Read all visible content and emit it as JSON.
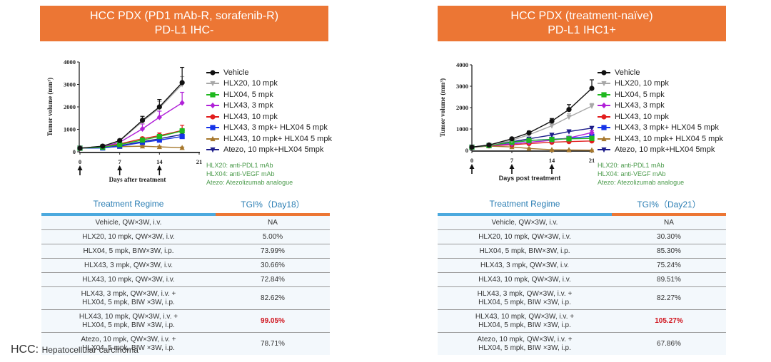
{
  "footer": {
    "abbr": "HCC:",
    "definition": "Hepatocellular carcinoma"
  },
  "panels": [
    {
      "banner_line1": "HCC PDX (PD1 mAb-R, sorafenib-R)",
      "banner_line2": "PD-L1 IHC-",
      "notes": [
        "HLX20: anti-PDL1 mAb",
        "HLX04: anti-VEGF mAb",
        "Atezo: Atezolizumab analogue"
      ],
      "table": {
        "header_regime": "Treatment Regime",
        "header_tgi": "TGI%（Day18）",
        "rows": [
          {
            "regime": [
              "Vehicle, QW×3W, i.v."
            ],
            "tgi": "NA",
            "highlight": false
          },
          {
            "regime": [
              "HLX20, 10 mpk, QW×3W, i.v."
            ],
            "tgi": "5.00%",
            "highlight": false
          },
          {
            "regime": [
              "HLX04, 5 mpk, BIW×3W, i.p."
            ],
            "tgi": "73.99%",
            "highlight": false
          },
          {
            "regime": [
              "HLX43, 3 mpk, QW×3W, i.v."
            ],
            "tgi": "30.66%",
            "highlight": false
          },
          {
            "regime": [
              "HLX43, 10 mpk, QW×3W, i.v."
            ],
            "tgi": "72.84%",
            "highlight": false
          },
          {
            "regime": [
              "HLX43, 3 mpk, QW×3W, i.v. +",
              "HLX04, 5 mpk, BIW ×3W, i.p."
            ],
            "tgi": "82.62%",
            "highlight": false
          },
          {
            "regime": [
              "HLX43, 10 mpk, QW×3W, i.v. +",
              "HLX04, 5 mpk, BIW ×3W, i.p."
            ],
            "tgi": "99.05%",
            "highlight": true
          },
          {
            "regime": [
              "Atezo, 10 mpk, QW×3W, i.v. +",
              "HLX04, 5 mpk, BIW ×3W, i.p."
            ],
            "tgi": "78.71%",
            "highlight": false
          }
        ]
      }
    },
    {
      "banner_line1": "HCC PDX (treatment-naïve)",
      "banner_line2": "PD-L1 IHC1+",
      "notes": [
        "HLX20: anti-PDL1 mAb",
        "HLX04: anti-VEGF mAb",
        "Atezo: Atezolizumab analogue"
      ],
      "table": {
        "header_regime": "Treatment Regime",
        "header_tgi": "TGI%（Day21）",
        "rows": [
          {
            "regime": [
              "Vehicle, QW×3W, i.v."
            ],
            "tgi": "NA",
            "highlight": false
          },
          {
            "regime": [
              "HLX20, 10 mpk, QW×3W, i.v."
            ],
            "tgi": "30.30%",
            "highlight": false
          },
          {
            "regime": [
              "HLX04, 5 mpk, BIW×3W, i.p."
            ],
            "tgi": "85.30%",
            "highlight": false
          },
          {
            "regime": [
              "HLX43, 3 mpk, QW×3W, i.v."
            ],
            "tgi": "75.24%",
            "highlight": false
          },
          {
            "regime": [
              "HLX43, 10 mpk, QW×3W, i.v."
            ],
            "tgi": "89.51%",
            "highlight": false
          },
          {
            "regime": [
              "HLX43, 3 mpk, QW×3W, i.v. +",
              "HLX04, 5 mpk, BIW ×3W, i.p."
            ],
            "tgi": "82.27%",
            "highlight": false
          },
          {
            "regime": [
              "HLX43, 10 mpk, QW×3W, i.v. +",
              "HLX04, 5 mpk, BIW ×3W, i.p."
            ],
            "tgi": "105.27%",
            "highlight": true
          },
          {
            "regime": [
              "Atezo, 10 mpk, QW×3W, i.v. +",
              "HLX04, 5 mpk, BIW ×3W, i.p."
            ],
            "tgi": "67.86%",
            "highlight": false
          }
        ]
      }
    }
  ],
  "colors": {
    "banner": "#EC7634",
    "table_header_text": "#2a7db3",
    "bar_blue": "#4BA9DE",
    "bar_orange": "#EC7634",
    "highlight": "#d0121b",
    "notes": "#4a9a4a"
  },
  "chart_data": [
    {
      "type": "line",
      "title": "HCC PDX (PD1 mAb-R, sorafenib-R) PD-L1 IHC-",
      "xlabel": "Days after treatment",
      "ylabel": "Tumor volume (mm³)",
      "xlim": [
        0,
        21
      ],
      "ylim": [
        0,
        4000
      ],
      "xticks": [
        0,
        7,
        14,
        21
      ],
      "yticks": [
        0,
        1000,
        2000,
        3000,
        4000
      ],
      "dosing_arrows_days": [
        0,
        7,
        14
      ],
      "legend_position": "right",
      "x": [
        0,
        4,
        7,
        11,
        14,
        18
      ],
      "series": [
        {
          "name": "Vehicle",
          "color": "#111111",
          "marker": "circle",
          "values": [
            160,
            250,
            500,
            1400,
            2000,
            3080
          ],
          "err": [
            0,
            30,
            40,
            180,
            330,
            680
          ]
        },
        {
          "name": "HLX20, 10 mpk",
          "color": "#a8a8a8",
          "marker": "triangle-down",
          "values": [
            160,
            245,
            480,
            1350,
            1950,
            3000
          ],
          "err": [
            0,
            30,
            40,
            150,
            300,
            350
          ]
        },
        {
          "name": "HLX04, 5 mpk",
          "color": "#1fb81f",
          "marker": "square",
          "values": [
            160,
            200,
            320,
            520,
            680,
            930
          ],
          "err": [
            0,
            20,
            30,
            60,
            80,
            100
          ]
        },
        {
          "name": "HLX43, 3 mpk",
          "color": "#b020d8",
          "marker": "diamond",
          "values": [
            160,
            220,
            420,
            1020,
            1540,
            2180
          ],
          "err": [
            0,
            30,
            40,
            220,
            270,
            470
          ]
        },
        {
          "name": "HLX43, 10 mpk",
          "color": "#e21d1d",
          "marker": "circle",
          "values": [
            160,
            230,
            350,
            580,
            720,
            950
          ],
          "err": [
            0,
            30,
            30,
            70,
            120,
            230
          ]
        },
        {
          "name": "HLX43, 3 mpk+ HLX04 5 mpk",
          "color": "#1533e8",
          "marker": "square",
          "values": [
            160,
            170,
            250,
            420,
            520,
            680
          ],
          "err": [
            0,
            20,
            20,
            50,
            60,
            80
          ]
        },
        {
          "name": "HLX43, 10 mpk+ HLX04 5 mpk",
          "color": "#a6772c",
          "marker": "triangle-up",
          "values": [
            160,
            200,
            230,
            250,
            220,
            180
          ],
          "err": [
            0,
            20,
            20,
            30,
            30,
            30
          ]
        },
        {
          "name": "Atezo, 10 mpk+HLX04 5mpk",
          "color": "#1d1d8a",
          "marker": "triangle-down",
          "values": [
            160,
            190,
            270,
            450,
            580,
            770
          ],
          "err": [
            0,
            20,
            20,
            50,
            60,
            80
          ]
        }
      ]
    },
    {
      "type": "line",
      "title": "HCC PDX (treatment-naïve) PD-L1 IHC1+",
      "xlabel": "Days post treatment",
      "ylabel": "Tumor volume (mm³)",
      "xlim": [
        0,
        21
      ],
      "ylim": [
        0,
        4000
      ],
      "xticks": [
        0,
        7,
        14,
        21
      ],
      "yticks": [
        0,
        1000,
        2000,
        3000,
        4000
      ],
      "dosing_arrows_days": [
        0,
        7,
        14
      ],
      "legend_position": "right",
      "x": [
        0,
        3,
        7,
        10,
        14,
        17,
        21
      ],
      "series": [
        {
          "name": "Vehicle",
          "color": "#111111",
          "marker": "circle",
          "values": [
            150,
            250,
            540,
            820,
            1370,
            1910,
            2900
          ],
          "err": [
            0,
            20,
            40,
            80,
            120,
            230,
            400
          ]
        },
        {
          "name": "HLX20, 10 mpk",
          "color": "#a8a8a8",
          "marker": "triangle-down",
          "values": [
            150,
            240,
            470,
            730,
            1150,
            1560,
            2070
          ],
          "err": [
            0,
            20,
            40,
            70,
            90,
            150,
            120
          ]
        },
        {
          "name": "HLX04, 5 mpk",
          "color": "#1fb81f",
          "marker": "square",
          "values": [
            150,
            220,
            380,
            460,
            510,
            540,
            560
          ],
          "err": [
            0,
            20,
            30,
            40,
            50,
            50,
            60
          ]
        },
        {
          "name": "HLX43, 3 mpk",
          "color": "#b020d8",
          "marker": "diamond",
          "values": [
            150,
            220,
            300,
            380,
            470,
            580,
            830
          ],
          "err": [
            0,
            20,
            30,
            40,
            50,
            60,
            90
          ]
        },
        {
          "name": "HLX43, 10 mpk",
          "color": "#e21d1d",
          "marker": "circle",
          "values": [
            150,
            210,
            260,
            320,
            380,
            410,
            440
          ],
          "err": [
            0,
            20,
            20,
            30,
            30,
            40,
            40
          ]
        },
        {
          "name": "HLX43, 3 mpk+ HLX04 5 mpk",
          "color": "#1533e8",
          "marker": "square",
          "values": [
            150,
            220,
            360,
            460,
            520,
            560,
            660
          ],
          "err": [
            0,
            20,
            30,
            40,
            50,
            50,
            60
          ]
        },
        {
          "name": "HLX43, 10 mpk+ HLX04 5 mpk",
          "color": "#a6772c",
          "marker": "triangle-up",
          "values": [
            150,
            200,
            160,
            90,
            30,
            20,
            10
          ],
          "err": [
            0,
            20,
            20,
            20,
            10,
            10,
            10
          ]
        },
        {
          "name": "Atezo, 10 mpk+HLX04 5mpk",
          "color": "#1d1d8a",
          "marker": "triangle-down",
          "values": [
            150,
            240,
            400,
            540,
            720,
            880,
            1040
          ],
          "err": [
            0,
            20,
            30,
            40,
            60,
            70,
            80
          ]
        }
      ]
    }
  ]
}
